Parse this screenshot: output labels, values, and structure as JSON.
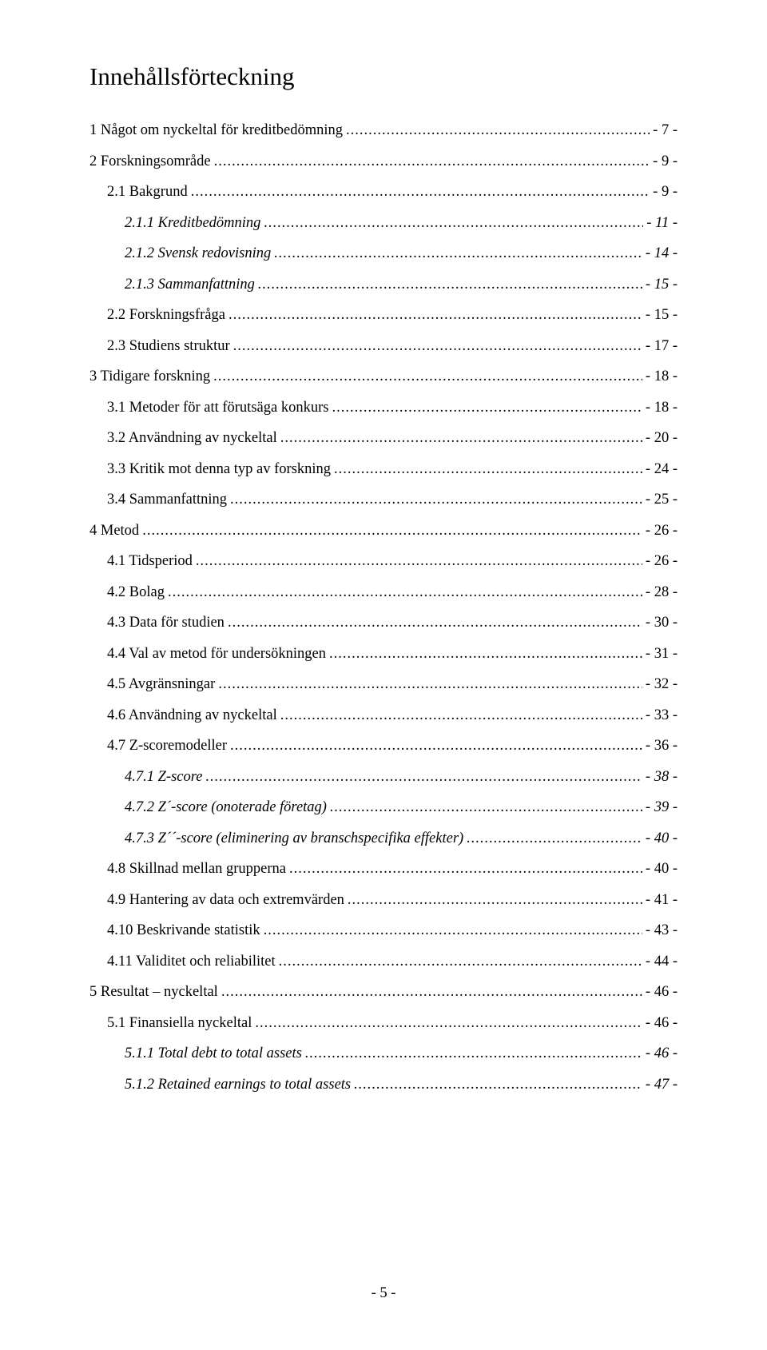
{
  "doc": {
    "title": "Innehållsförteckning",
    "page_number": "- 5 -",
    "font_family": "Times New Roman",
    "title_fontsize": 31,
    "body_fontsize": 18.5,
    "text_color": "#000000",
    "background_color": "#ffffff",
    "entries": [
      {
        "label": "1 Något om nyckeltal för kreditbedömning",
        "page": "- 7 -",
        "indent": 0,
        "italic": false
      },
      {
        "label": "2 Forskningsområde",
        "page": "- 9 -",
        "indent": 0,
        "italic": false
      },
      {
        "label": "2.1 Bakgrund",
        "page": "- 9 -",
        "indent": 1,
        "italic": false
      },
      {
        "label": "2.1.1 Kreditbedömning",
        "page": "- 11 -",
        "indent": 2,
        "italic": true
      },
      {
        "label": "2.1.2 Svensk redovisning",
        "page": "- 14 -",
        "indent": 2,
        "italic": true
      },
      {
        "label": "2.1.3 Sammanfattning",
        "page": "- 15 -",
        "indent": 2,
        "italic": true
      },
      {
        "label": "2.2 Forskningsfråga",
        "page": "- 15 -",
        "indent": 1,
        "italic": false
      },
      {
        "label": "2.3 Studiens struktur",
        "page": "- 17 -",
        "indent": 1,
        "italic": false
      },
      {
        "label": "3 Tidigare forskning",
        "page": "- 18 -",
        "indent": 0,
        "italic": false
      },
      {
        "label": "3.1 Metoder för att förutsäga konkurs",
        "page": "- 18 -",
        "indent": 1,
        "italic": false
      },
      {
        "label": "3.2 Användning av nyckeltal",
        "page": "- 20 -",
        "indent": 1,
        "italic": false
      },
      {
        "label": "3.3 Kritik mot denna typ av forskning",
        "page": "- 24 -",
        "indent": 1,
        "italic": false
      },
      {
        "label": "3.4 Sammanfattning",
        "page": "- 25 -",
        "indent": 1,
        "italic": false
      },
      {
        "label": "4 Metod",
        "page": "- 26 -",
        "indent": 0,
        "italic": false
      },
      {
        "label": "4.1 Tidsperiod",
        "page": "- 26 -",
        "indent": 1,
        "italic": false
      },
      {
        "label": "4.2 Bolag",
        "page": "- 28 -",
        "indent": 1,
        "italic": false
      },
      {
        "label": "4.3 Data för studien",
        "page": "- 30 -",
        "indent": 1,
        "italic": false
      },
      {
        "label": "4.4 Val av metod för undersökningen",
        "page": "- 31 -",
        "indent": 1,
        "italic": false
      },
      {
        "label": "4.5 Avgränsningar",
        "page": "- 32 -",
        "indent": 1,
        "italic": false
      },
      {
        "label": "4.6 Användning av nyckeltal",
        "page": "- 33 -",
        "indent": 1,
        "italic": false
      },
      {
        "label": "4.7 Z-scoremodeller",
        "page": "- 36 -",
        "indent": 1,
        "italic": false
      },
      {
        "label": "4.7.1 Z-score",
        "page": "- 38 -",
        "indent": 2,
        "italic": true
      },
      {
        "label": "4.7.2 Z´-score (onoterade företag)",
        "page": "- 39 -",
        "indent": 2,
        "italic": true
      },
      {
        "label": "4.7.3 Z´´-score (eliminering av branschspecifika effekter)",
        "page": "- 40 -",
        "indent": 2,
        "italic": true
      },
      {
        "label": "4.8 Skillnad mellan grupperna",
        "page": "- 40 -",
        "indent": 1,
        "italic": false
      },
      {
        "label": "4.9 Hantering av data och extremvärden",
        "page": "- 41 -",
        "indent": 1,
        "italic": false
      },
      {
        "label": "4.10 Beskrivande statistik",
        "page": "- 43 -",
        "indent": 1,
        "italic": false
      },
      {
        "label": "4.11 Validitet och reliabilitet",
        "page": "- 44 -",
        "indent": 1,
        "italic": false
      },
      {
        "label": "5 Resultat – nyckeltal",
        "page": "- 46 -",
        "indent": 0,
        "italic": false
      },
      {
        "label": "5.1 Finansiella nyckeltal",
        "page": "- 46 -",
        "indent": 1,
        "italic": false
      },
      {
        "label": "5.1.1 Total debt to total assets",
        "page": "- 46 -",
        "indent": 2,
        "italic": true
      },
      {
        "label": "5.1.2 Retained earnings to total assets",
        "page": "- 47 -",
        "indent": 2,
        "italic": true
      }
    ]
  }
}
